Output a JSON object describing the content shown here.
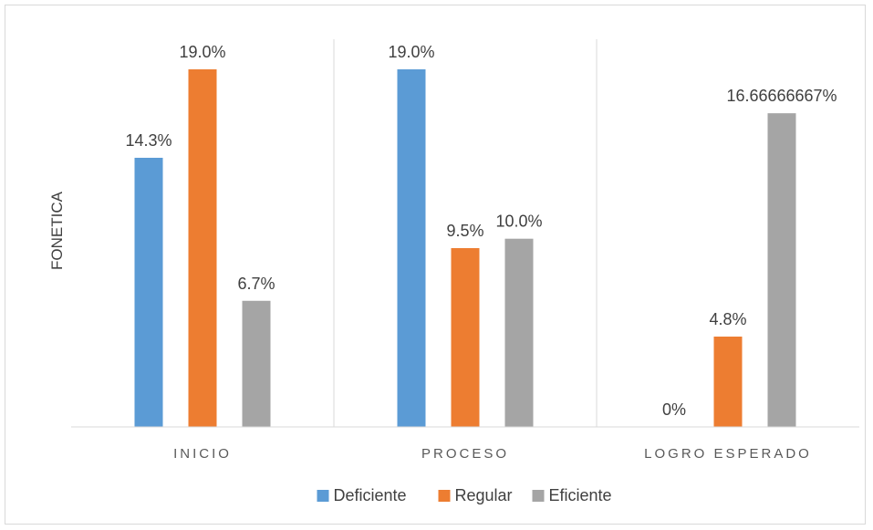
{
  "chart_data": {
    "type": "bar",
    "title": "",
    "xlabel": "",
    "ylabel": "FONETICA",
    "ylim": [
      0,
      20.6
    ],
    "grid": false,
    "legend_position": "bottom",
    "categories": [
      "INICIO",
      "PROCESO",
      "LOGRO ESPERADO"
    ],
    "series": [
      {
        "name": "Deficiente",
        "color": "#5b9bd5",
        "values": [
          14.3,
          19.0,
          0
        ],
        "labels": [
          "14.3%",
          "19.0%",
          "0%"
        ]
      },
      {
        "name": "Regular",
        "color": "#ed7d31",
        "values": [
          19.0,
          9.5,
          4.8
        ],
        "labels": [
          "19.0%",
          "9.5%",
          "4.8%"
        ]
      },
      {
        "name": "Eficiente",
        "color": "#a5a5a5",
        "values": [
          6.7,
          10.0,
          16.66666667
        ],
        "labels": [
          "6.7%",
          "10.0%",
          "16.66666667%"
        ]
      }
    ]
  }
}
